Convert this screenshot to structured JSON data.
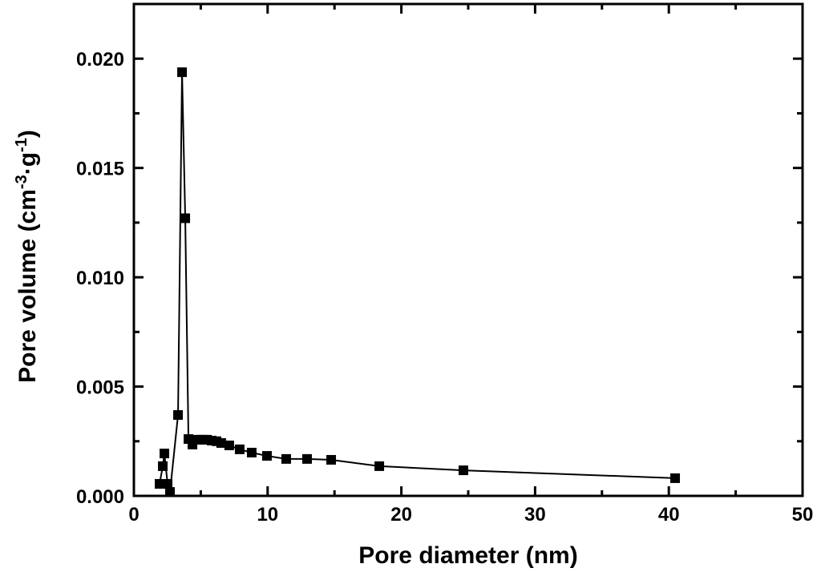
{
  "chart_data": {
    "type": "line",
    "xlabel": "Pore diameter (nm)",
    "ylabel_parts": [
      "Pore volume (cm",
      "-3",
      "·g",
      "-1",
      ")"
    ],
    "xlim": [
      0,
      50
    ],
    "ylim": [
      0,
      0.0225
    ],
    "xticks": [
      0,
      10,
      20,
      30,
      40,
      50
    ],
    "xminorticks": [
      5,
      15,
      25,
      35,
      45
    ],
    "yticks": [
      {
        "value": 0,
        "label": "0.000"
      },
      {
        "value": 0.005,
        "label": "0.005"
      },
      {
        "value": 0.01,
        "label": "0.010"
      },
      {
        "value": 0.015,
        "label": "0.015"
      },
      {
        "value": 0.02,
        "label": "0.020"
      }
    ],
    "yminorticks": [
      0.0025,
      0.0075,
      0.0125,
      0.0175
    ],
    "color": "#000000",
    "x": [
      1.92,
      2.16,
      2.28,
      2.52,
      2.7,
      3.3,
      3.6,
      3.84,
      4.08,
      4.38,
      4.74,
      5.1,
      5.46,
      5.82,
      6.18,
      6.53,
      7.13,
      7.91,
      8.81,
      9.95,
      11.39,
      12.95,
      14.75,
      18.35,
      24.64,
      40.47
    ],
    "values": [
      0.00055,
      0.00136,
      0.00194,
      0.00055,
      0.00018,
      0.0037,
      0.01938,
      0.0127,
      0.0026,
      0.00235,
      0.00257,
      0.00257,
      0.00257,
      0.00253,
      0.0025,
      0.00242,
      0.00231,
      0.00213,
      0.00198,
      0.00183,
      0.00169,
      0.00169,
      0.00165,
      0.00136,
      0.00117,
      0.00081
    ]
  }
}
